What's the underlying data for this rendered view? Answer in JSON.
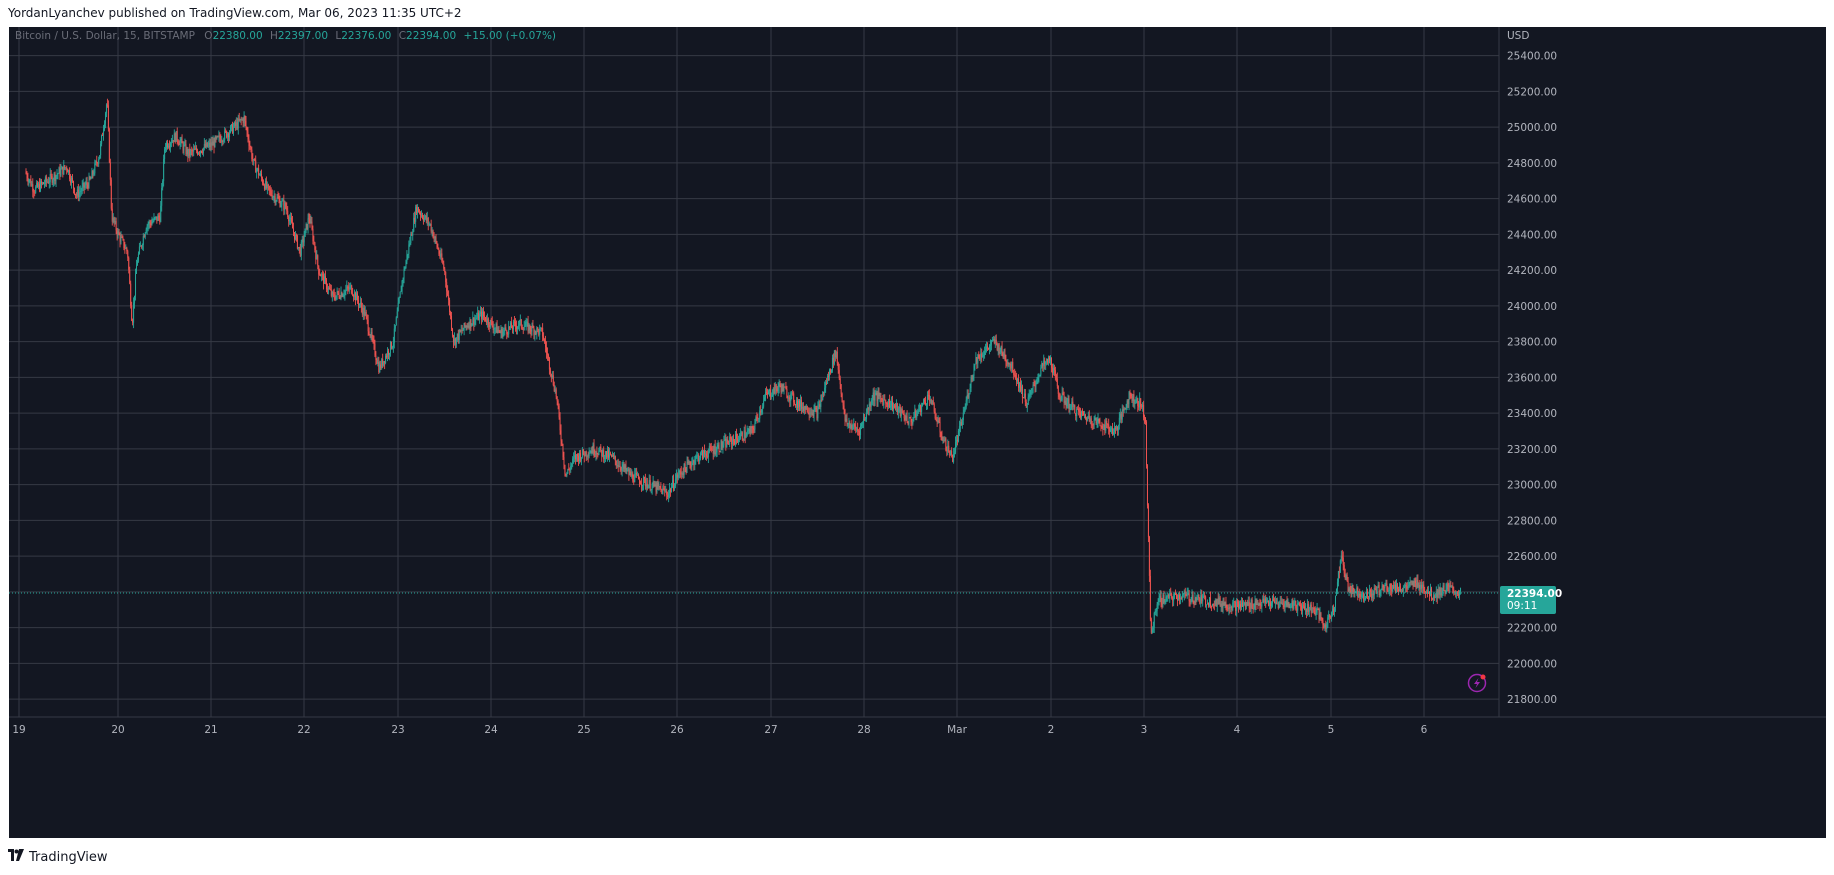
{
  "publish_info": "YordanLyanchev published on TradingView.com, Mar 06, 2023 11:35 UTC+2",
  "footer": {
    "brand": "TradingView",
    "logo_icon": "tradingview-logo-icon"
  },
  "colors": {
    "background": "#131722",
    "grid": "#363a45",
    "up": "#26a69a",
    "down": "#ef5350",
    "axis_text": "#b2b5be",
    "price_tag": "#26a69a"
  },
  "legend": {
    "symbol": "Bitcoin / U.S. Dollar, 15, BITSTAMP",
    "open_label": "O",
    "open": "22380.00",
    "high_label": "H",
    "high": "22397.00",
    "low_label": "L",
    "low": "22376.00",
    "close_label": "C",
    "close": "22394.00",
    "change": "+15.00 (+0.07%)"
  },
  "price_tag": {
    "price": "22394.00",
    "countdown": "09:11"
  },
  "chart_data": {
    "type": "candlestick",
    "symbol": "Bitcoin / U.S. Dollar",
    "interval": "15",
    "exchange": "BITSTAMP",
    "currency": "USD",
    "ylim": [
      21700,
      25560
    ],
    "x_ticks": [
      "19",
      "20",
      "21",
      "22",
      "23",
      "24",
      "25",
      "26",
      "27",
      "28",
      "Mar",
      "2",
      "3",
      "4",
      "5",
      "6"
    ],
    "y_ticks": [
      "21800.00",
      "22000.00",
      "22200.00",
      "22400.00",
      "22600.00",
      "22800.00",
      "23000.00",
      "23200.00",
      "23400.00",
      "23600.00",
      "23800.00",
      "24000.00",
      "24200.00",
      "24400.00",
      "24600.00",
      "24800.00",
      "25000.00",
      "25200.00",
      "25400.00"
    ],
    "last_price": 22394.0,
    "grid": true,
    "price_path": [
      {
        "day": 19.0,
        "price": 24750
      },
      {
        "day": 19.1,
        "price": 24650
      },
      {
        "day": 19.3,
        "price": 24720
      },
      {
        "day": 19.45,
        "price": 24780
      },
      {
        "day": 19.55,
        "price": 24620
      },
      {
        "day": 19.7,
        "price": 24700
      },
      {
        "day": 19.8,
        "price": 24850
      },
      {
        "day": 19.88,
        "price": 25150
      },
      {
        "day": 19.93,
        "price": 24500
      },
      {
        "day": 20.0,
        "price": 24400
      },
      {
        "day": 20.1,
        "price": 24300
      },
      {
        "day": 20.15,
        "price": 23900
      },
      {
        "day": 20.2,
        "price": 24250
      },
      {
        "day": 20.3,
        "price": 24450
      },
      {
        "day": 20.45,
        "price": 24500
      },
      {
        "day": 20.5,
        "price": 24900
      },
      {
        "day": 20.62,
        "price": 24950
      },
      {
        "day": 20.75,
        "price": 24850
      },
      {
        "day": 21.0,
        "price": 24900
      },
      {
        "day": 21.2,
        "price": 24980
      },
      {
        "day": 21.35,
        "price": 25050
      },
      {
        "day": 21.45,
        "price": 24800
      },
      {
        "day": 21.6,
        "price": 24650
      },
      {
        "day": 21.8,
        "price": 24550
      },
      {
        "day": 21.95,
        "price": 24300
      },
      {
        "day": 22.05,
        "price": 24500
      },
      {
        "day": 22.15,
        "price": 24200
      },
      {
        "day": 22.3,
        "price": 24050
      },
      {
        "day": 22.5,
        "price": 24100
      },
      {
        "day": 22.65,
        "price": 23950
      },
      {
        "day": 22.8,
        "price": 23650
      },
      {
        "day": 22.95,
        "price": 23800
      },
      {
        "day": 23.05,
        "price": 24150
      },
      {
        "day": 23.2,
        "price": 24550
      },
      {
        "day": 23.35,
        "price": 24450
      },
      {
        "day": 23.5,
        "price": 24200
      },
      {
        "day": 23.6,
        "price": 23800
      },
      {
        "day": 23.75,
        "price": 23900
      },
      {
        "day": 23.9,
        "price": 23950
      },
      {
        "day": 24.1,
        "price": 23850
      },
      {
        "day": 24.3,
        "price": 23900
      },
      {
        "day": 24.55,
        "price": 23850
      },
      {
        "day": 24.7,
        "price": 23500
      },
      {
        "day": 24.8,
        "price": 23050
      },
      {
        "day": 24.9,
        "price": 23150
      },
      {
        "day": 25.1,
        "price": 23200
      },
      {
        "day": 25.3,
        "price": 23150
      },
      {
        "day": 25.5,
        "price": 23050
      },
      {
        "day": 25.7,
        "price": 23000
      },
      {
        "day": 25.9,
        "price": 22950
      },
      {
        "day": 26.0,
        "price": 23050
      },
      {
        "day": 26.2,
        "price": 23150
      },
      {
        "day": 26.4,
        "price": 23200
      },
      {
        "day": 26.6,
        "price": 23250
      },
      {
        "day": 26.8,
        "price": 23300
      },
      {
        "day": 26.95,
        "price": 23500
      },
      {
        "day": 27.1,
        "price": 23550
      },
      {
        "day": 27.3,
        "price": 23450
      },
      {
        "day": 27.5,
        "price": 23400
      },
      {
        "day": 27.7,
        "price": 23750
      },
      {
        "day": 27.8,
        "price": 23350
      },
      {
        "day": 27.95,
        "price": 23300
      },
      {
        "day": 28.1,
        "price": 23500
      },
      {
        "day": 28.3,
        "price": 23450
      },
      {
        "day": 28.5,
        "price": 23350
      },
      {
        "day": 28.7,
        "price": 23500
      },
      {
        "day": 28.85,
        "price": 23250
      },
      {
        "day": 28.95,
        "price": 23150
      },
      {
        "day": 29.05,
        "price": 23350
      },
      {
        "day": 29.2,
        "price": 23700
      },
      {
        "day": 29.4,
        "price": 23800
      },
      {
        "day": 29.6,
        "price": 23650
      },
      {
        "day": 29.75,
        "price": 23450
      },
      {
        "day": 29.9,
        "price": 23650
      },
      {
        "day": 30.0,
        "price": 23700
      },
      {
        "day": 30.1,
        "price": 23500
      },
      {
        "day": 30.3,
        "price": 23400
      },
      {
        "day": 30.5,
        "price": 23350
      },
      {
        "day": 30.7,
        "price": 23300
      },
      {
        "day": 30.85,
        "price": 23500
      },
      {
        "day": 30.97,
        "price": 23450
      },
      {
        "day": 31.02,
        "price": 23380
      },
      {
        "day": 31.05,
        "price": 22750
      },
      {
        "day": 31.08,
        "price": 22150
      },
      {
        "day": 31.15,
        "price": 22350
      },
      {
        "day": 31.4,
        "price": 22380
      },
      {
        "day": 31.7,
        "price": 22350
      },
      {
        "day": 32.0,
        "price": 22320
      },
      {
        "day": 32.3,
        "price": 22340
      },
      {
        "day": 32.6,
        "price": 22330
      },
      {
        "day": 32.85,
        "price": 22300
      },
      {
        "day": 32.95,
        "price": 22200
      },
      {
        "day": 33.05,
        "price": 22330
      },
      {
        "day": 33.12,
        "price": 22600
      },
      {
        "day": 33.2,
        "price": 22420
      },
      {
        "day": 33.4,
        "price": 22380
      },
      {
        "day": 33.6,
        "price": 22430
      },
      {
        "day": 33.8,
        "price": 22420
      },
      {
        "day": 33.95,
        "price": 22450
      },
      {
        "day": 34.1,
        "price": 22380
      },
      {
        "day": 34.25,
        "price": 22420
      },
      {
        "day": 34.4,
        "price": 22394
      }
    ]
  }
}
